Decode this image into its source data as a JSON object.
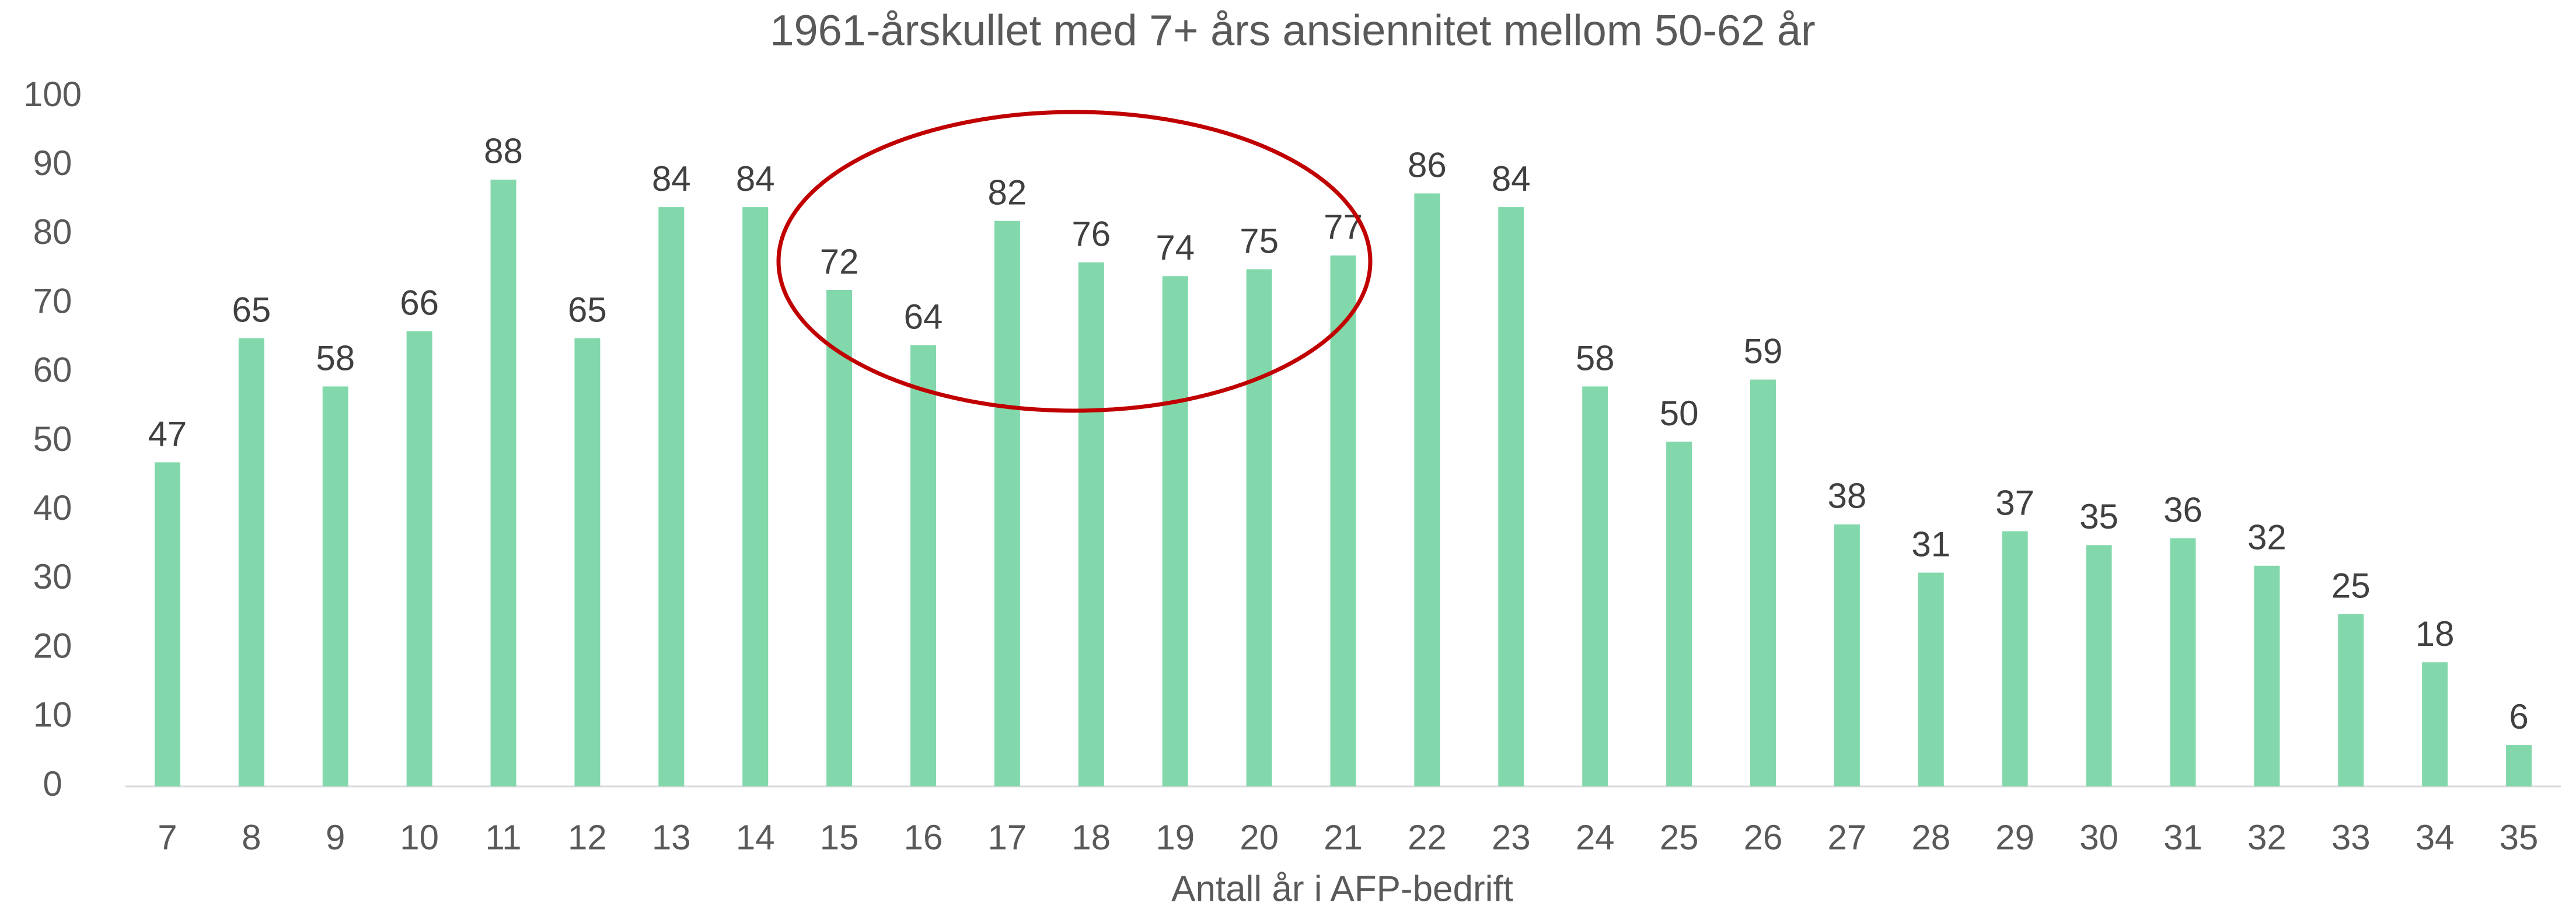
{
  "chart_data": {
    "type": "bar",
    "title": "1961-årskullet med 7+ års ansiennitet mellom 50-62 år",
    "x_label": "Antall år i AFP-bedrift",
    "categories": [
      "7",
      "8",
      "9",
      "10",
      "11",
      "12",
      "13",
      "14",
      "15",
      "16",
      "17",
      "18",
      "19",
      "20",
      "21",
      "22",
      "23",
      "24",
      "25",
      "26",
      "27",
      "28",
      "29",
      "30",
      "31",
      "32",
      "33",
      "34",
      "35"
    ],
    "values": [
      47,
      65,
      58,
      66,
      88,
      65,
      84,
      84,
      72,
      64,
      82,
      76,
      74,
      75,
      77,
      86,
      84,
      58,
      50,
      59,
      38,
      31,
      37,
      35,
      36,
      32,
      25,
      18,
      6
    ],
    "color": "#82d8ab",
    "ylim": [
      0,
      100
    ],
    "yticks": [
      0,
      10,
      20,
      30,
      40,
      50,
      60,
      70,
      80,
      90,
      100
    ],
    "grid": false
  }
}
